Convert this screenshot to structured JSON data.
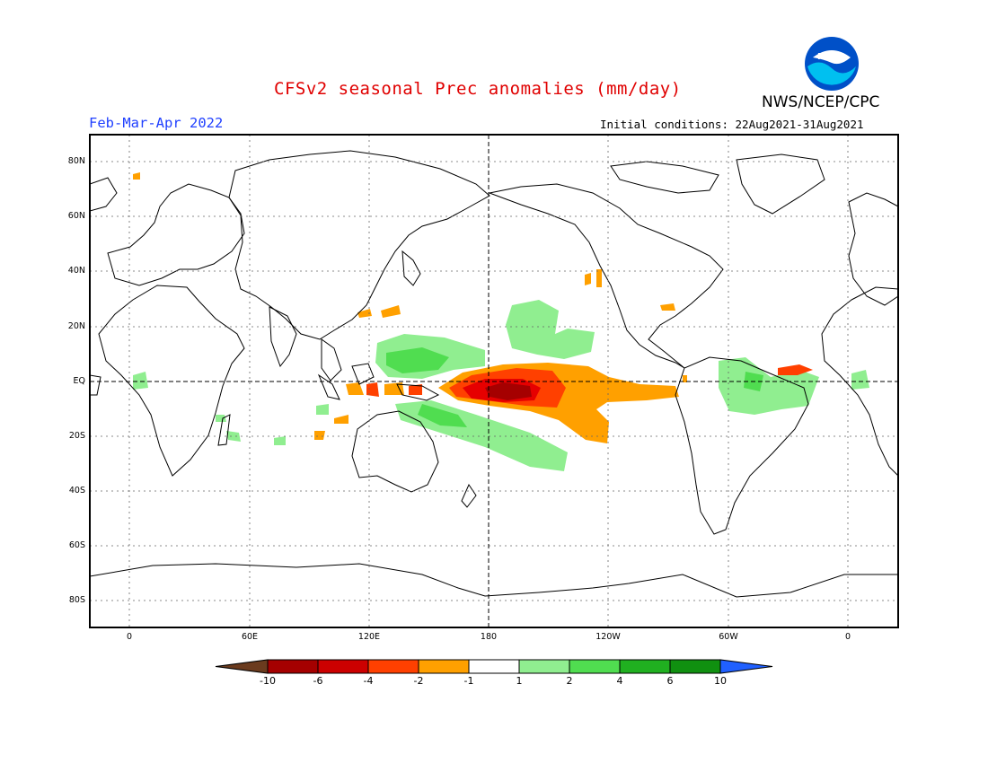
{
  "header": {
    "title": "CFSv2 seasonal Prec anomalies (mm/day)",
    "agency": "NWS/NCEP/CPC",
    "logo_text": "NOAA",
    "season": "Feb-Mar-Apr 2022",
    "initial_conditions": "Initial conditions: 22Aug2021-31Aug2021"
  },
  "map": {
    "lat_labels": [
      "80N",
      "60N",
      "40N",
      "20N",
      "EQ",
      "20S",
      "40S",
      "60S",
      "80S"
    ],
    "lon_labels": [
      "0",
      "60E",
      "120E",
      "180",
      "120W",
      "60W",
      "0"
    ]
  },
  "colorbar": {
    "labels": [
      "-10",
      "-6",
      "-4",
      "-2",
      "-1",
      "1",
      "2",
      "4",
      "6",
      "10"
    ],
    "colors": [
      "#6b3b1e",
      "#a50000",
      "#cc0000",
      "#ff4000",
      "#ffa000",
      "#ffffff",
      "#90ee90",
      "#50dd50",
      "#20b020",
      "#109010",
      "#2060ff"
    ]
  },
  "colors": {
    "dry_strong": "#a50000",
    "dry_mod": "#e60000",
    "dry_light": "#ff4000",
    "dry_weak": "#ffa000",
    "wet_weak": "#90ee90",
    "wet_light": "#50dd50",
    "wet_mod": "#20b020"
  }
}
